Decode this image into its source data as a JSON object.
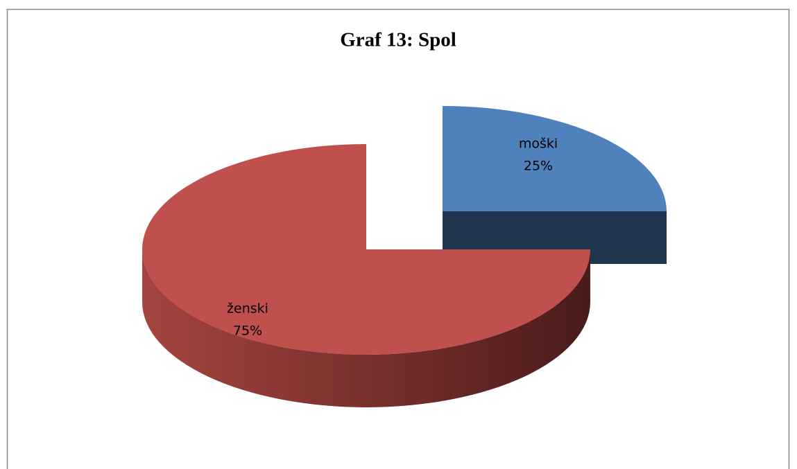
{
  "chart_data": {
    "type": "pie",
    "title": "Graf 13: Spol",
    "categories": [
      "moški",
      "ženski"
    ],
    "values": [
      25,
      75
    ],
    "value_labels": [
      "25%",
      "75%"
    ],
    "colors": [
      "#4f81bd",
      "#c0504d"
    ]
  }
}
